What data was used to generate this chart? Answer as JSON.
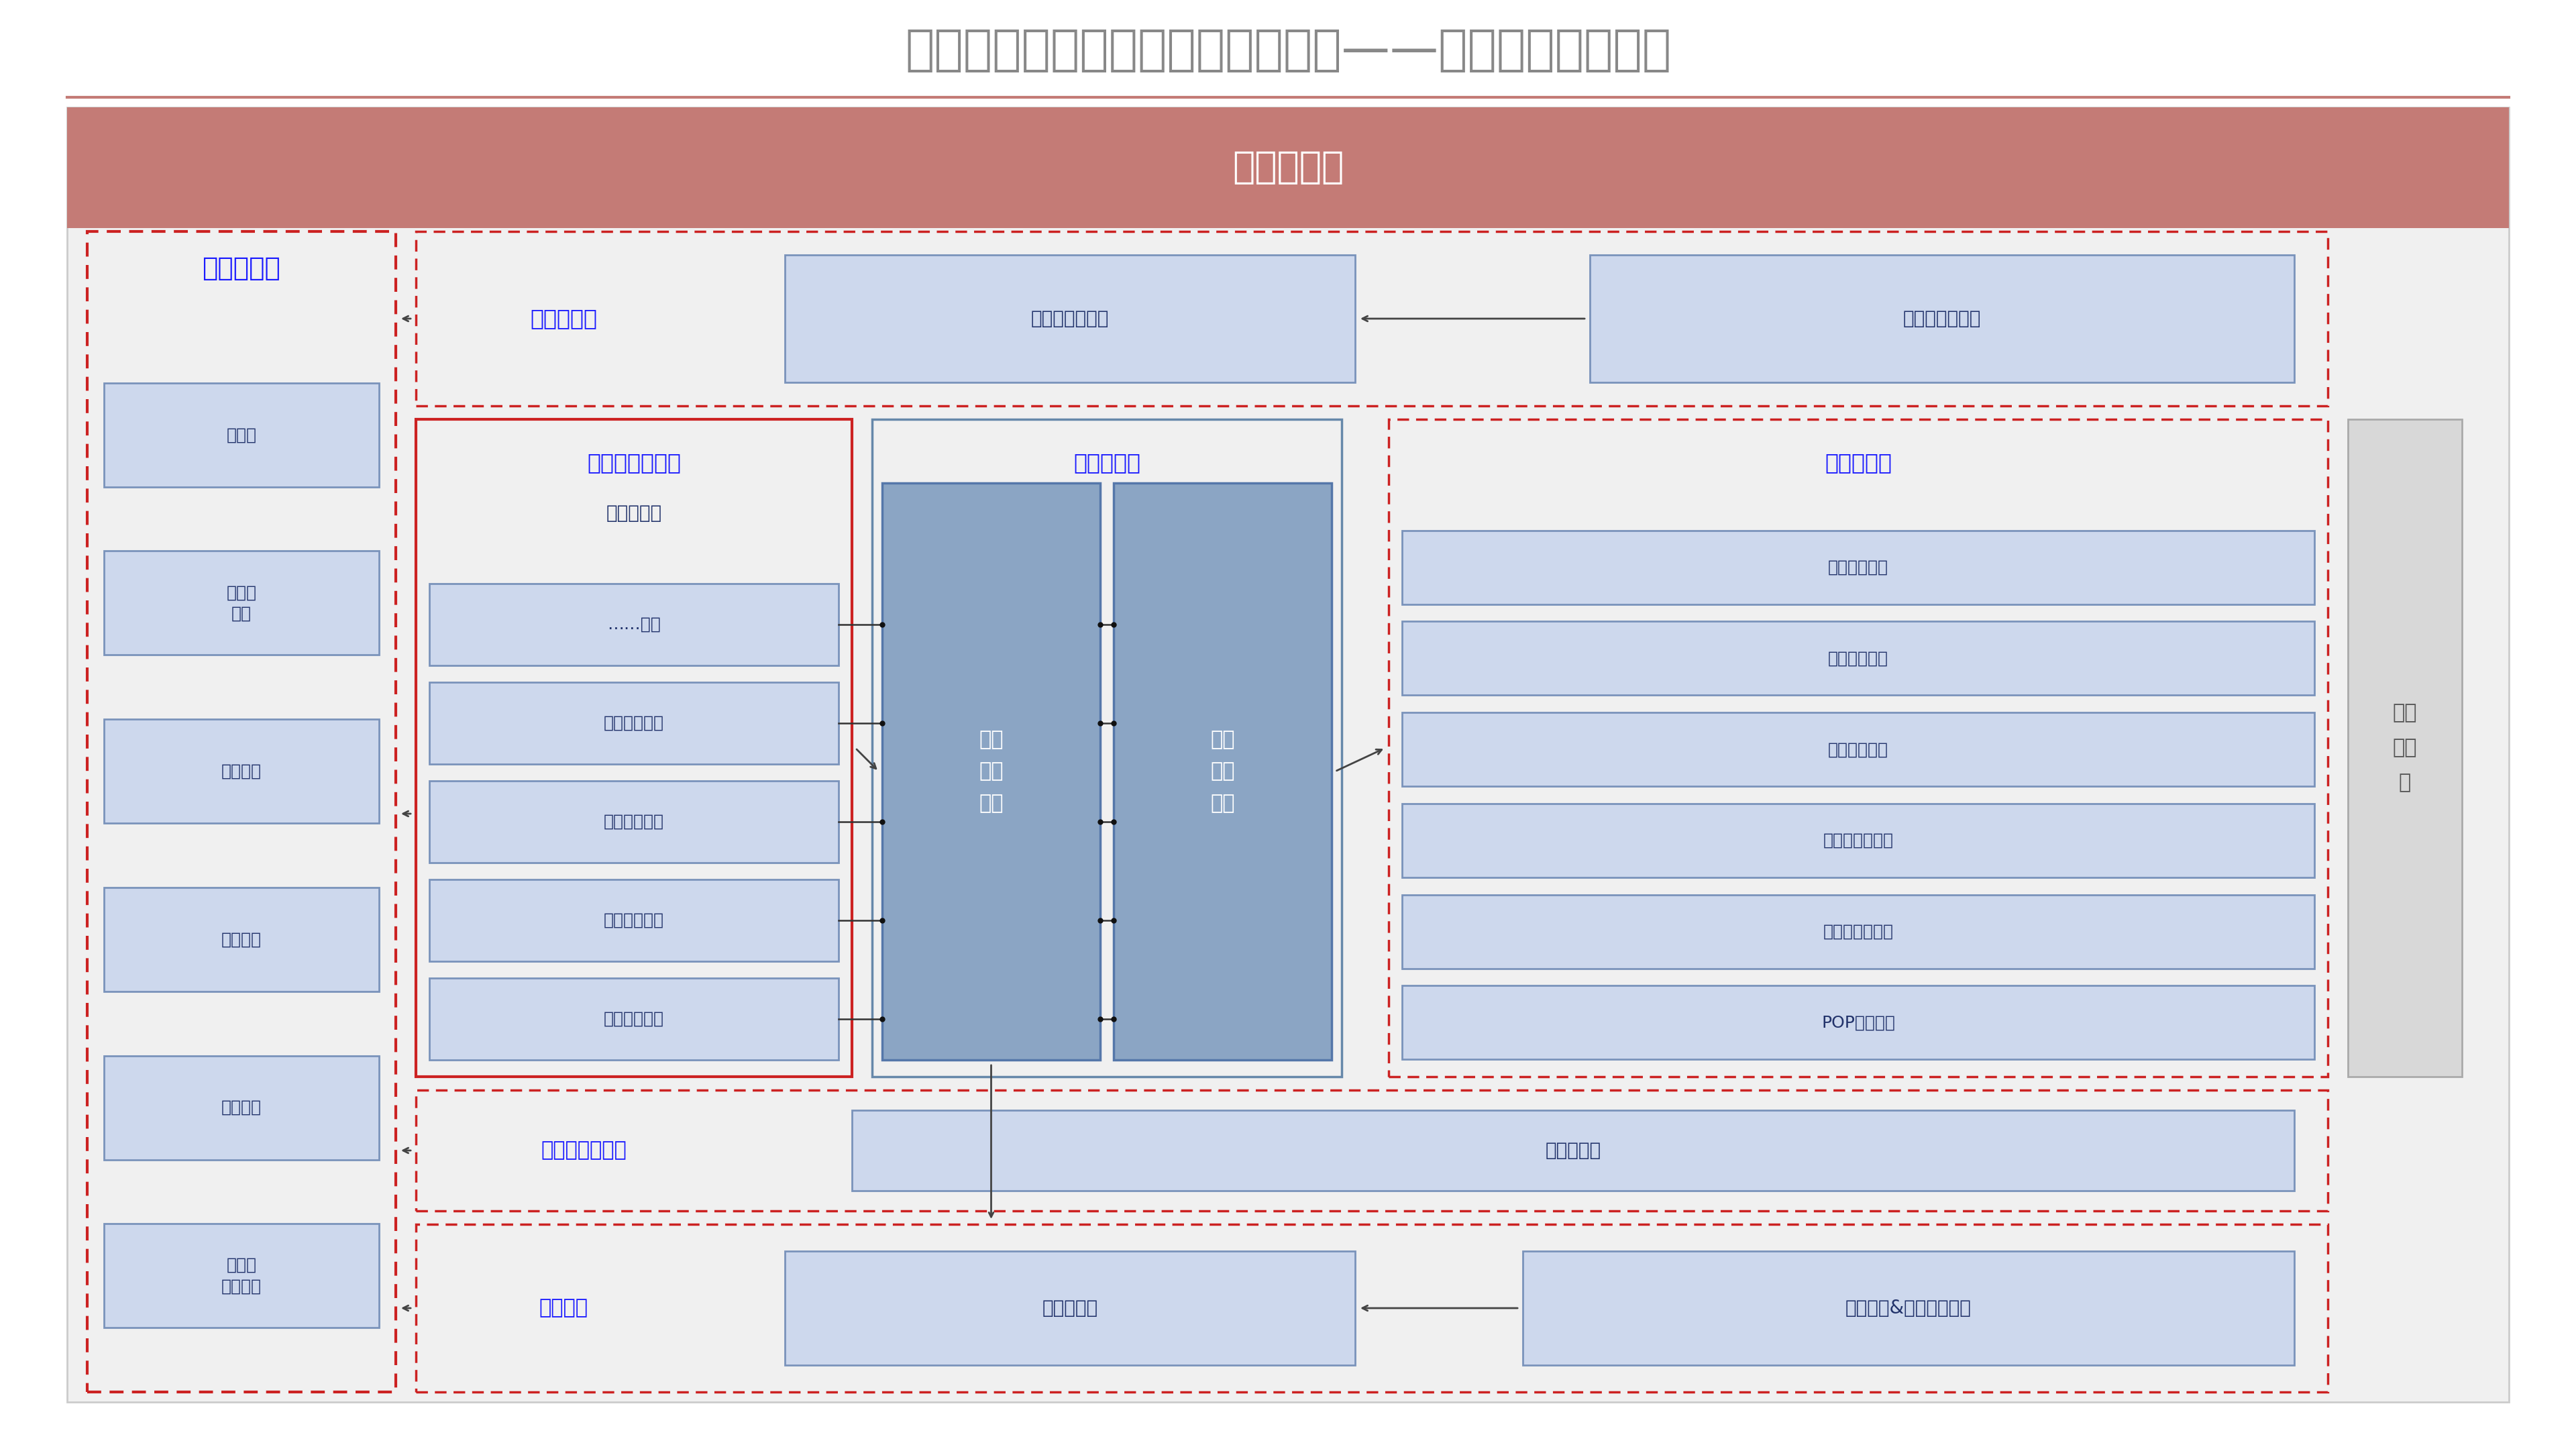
{
  "title": "企业数字化底座与数字化总体架构——数据存储层数据流",
  "title_color": "#888888",
  "title_fontsize": 52,
  "bg_color": "#ffffff",
  "header_bar_color": "#c47b76",
  "header_text": "数据集成层",
  "header_text_color": "#ffffff",
  "header_fontsize": 40,
  "archive_zone_label": "归档数据区",
  "realtime_zone_label": "实时数据区",
  "value_added_label": "增值产品数据区",
  "market_zone_label": "集市数据区",
  "theme_zone_label": "主题数据区",
  "source_zone_label": "贴源数据区",
  "sandbox_label": "沙盘演练数据区",
  "bigdata_zone_label": "大数据区",
  "temp_zone_label": "临时\n数据\n区",
  "archive_items": [
    "源系统\n数据文件",
    "贴源数据",
    "主题数据",
    "集市数据",
    "高时效\n数据",
    "大数据"
  ],
  "market_items": [
    "客户管理集市",
    "财务管理集市",
    "运营管理集市",
    "风险管理集市",
    "……集市"
  ],
  "source_items": [
    "POP自营数据",
    "大物流系统数据",
    "供应链系统数据",
    "财务审计数据",
    "财务研发数据",
    "金融业务数据"
  ],
  "op_agg_label": "操作型聚合数据",
  "op_detail_label": "操作型明细数据",
  "public_hub_label": "公共\n汇总\n数据",
  "theme_detail_label": "主题\n明细\n数据",
  "lab_data_label": "实验室数据",
  "struct_data_label": "结构化数据",
  "unstruct_data_label": "非结构化&半结构化数据",
  "blue_label_color": "#1a1aff",
  "red_border_color": "#cc2222",
  "box_fill_light": "#cdd8ed",
  "box_fill_blue": "#8ba5c4",
  "outer_fill": "#f0f0f0",
  "outer_border": "#cccccc",
  "tmp_fill": "#d8d8d8",
  "tmp_border": "#aaaaaa"
}
